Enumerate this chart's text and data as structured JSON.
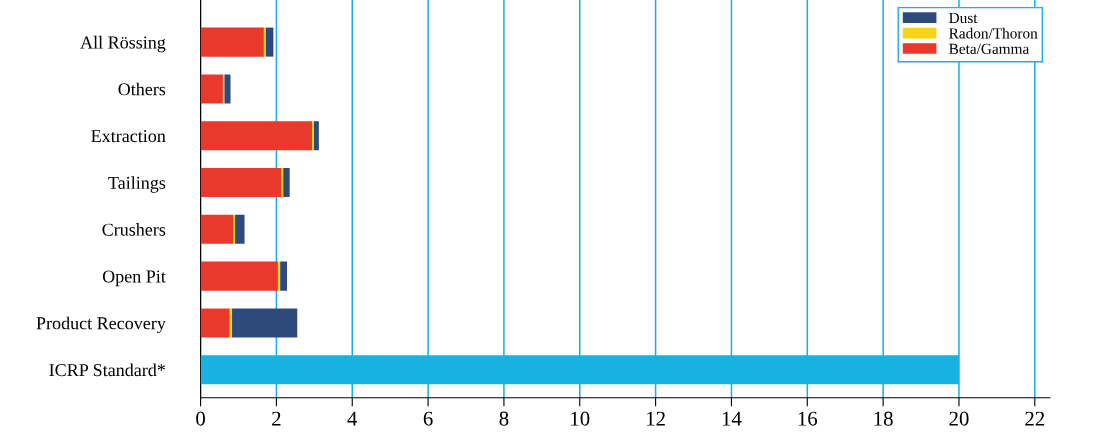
{
  "chart_data": {
    "type": "bar",
    "orientation": "horizontal",
    "stacked": true,
    "categories": [
      "All Rössing",
      "Others",
      "Extraction",
      "Tailings",
      "Crushers",
      "Open Pit",
      "Product Recovery",
      "ICRP Standard*"
    ],
    "series": [
      {
        "name": "Beta/Gamma",
        "color": "#e8392c",
        "values": [
          1.67,
          0.59,
          2.94,
          2.13,
          0.87,
          2.04,
          0.77,
          null
        ]
      },
      {
        "name": "Radon/Thoron",
        "color": "#f7d31a",
        "values": [
          0.05,
          0.04,
          0.05,
          0.05,
          0.04,
          0.06,
          0.06,
          null
        ]
      },
      {
        "name": "Dust",
        "color": "#2e4a7d",
        "values": [
          0.2,
          0.16,
          0.13,
          0.17,
          0.25,
          0.18,
          1.72,
          null
        ]
      },
      {
        "color": "#18b2e0",
        "values": [
          null,
          null,
          null,
          null,
          null,
          null,
          null,
          20
        ]
      }
    ],
    "xlim": [
      0,
      22.4
    ],
    "xticks": [
      0,
      2,
      4,
      6,
      8,
      10,
      12,
      14,
      16,
      18,
      20,
      22
    ],
    "grid": "x",
    "legend": "top right"
  }
}
